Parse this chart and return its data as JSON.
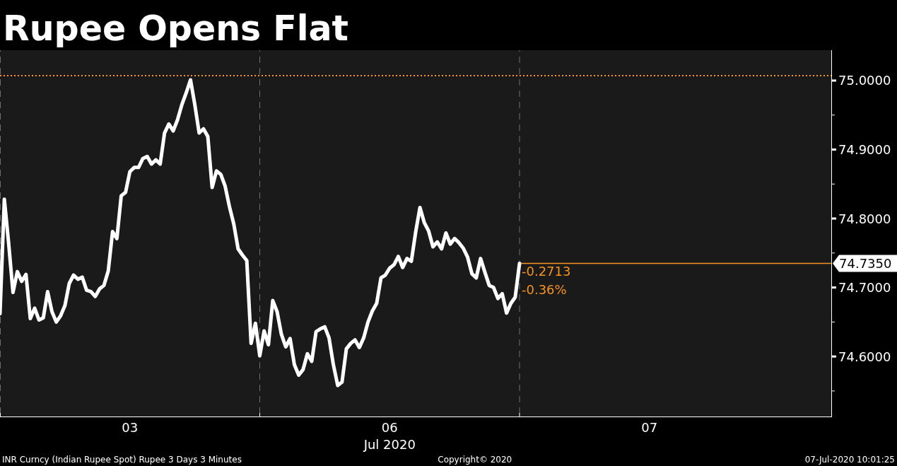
{
  "chart_data": {
    "type": "line",
    "title": "Rupee Opens Flat",
    "xlabel": "Jul 2020",
    "categories": [
      null,
      null,
      null,
      null,
      null,
      null,
      null,
      null,
      null,
      null,
      null,
      null,
      null,
      null,
      null,
      null,
      null,
      null,
      null,
      null,
      null,
      null,
      null,
      null,
      null,
      null,
      null,
      null,
      null,
      null,
      "03",
      null,
      null,
      null,
      null,
      null,
      null,
      null,
      null,
      null,
      null,
      null,
      null,
      null,
      null,
      null,
      null,
      null,
      null,
      null,
      null,
      null,
      null,
      null,
      null,
      null,
      null,
      null,
      null,
      null,
      null,
      null,
      null,
      null,
      null,
      null,
      null,
      null,
      null,
      null,
      null,
      null,
      null,
      null,
      null,
      null,
      null,
      null,
      null,
      null,
      null,
      null,
      null,
      null,
      null,
      null,
      null,
      null,
      null,
      null,
      "06",
      null,
      null,
      null,
      null,
      null,
      null,
      null,
      null,
      null,
      null,
      null,
      null,
      null,
      null,
      null,
      null,
      null,
      null,
      null,
      null,
      null,
      null,
      null,
      null,
      null,
      null,
      null,
      null,
      null,
      null,
      null,
      null,
      null,
      null,
      null,
      null,
      null,
      null,
      null,
      null,
      null,
      null,
      null,
      null,
      null,
      null,
      null,
      null,
      null,
      null,
      null,
      null,
      null,
      null,
      null,
      null,
      null,
      null,
      null,
      "07",
      null,
      null,
      null,
      null,
      null,
      null,
      null,
      null,
      null,
      null,
      null,
      null,
      null,
      null,
      null,
      null,
      null,
      null,
      null,
      null,
      null,
      null,
      null,
      null,
      null,
      null,
      null,
      null,
      null,
      null,
      null,
      null,
      null,
      null,
      null,
      null,
      null,
      null,
      null,
      null,
      null,
      null
    ],
    "series": [
      {
        "color": "#ffffff",
        "values": [
          74.662,
          74.828,
          74.764,
          74.693,
          74.723,
          74.709,
          74.719,
          74.655,
          74.67,
          74.653,
          74.656,
          74.694,
          74.665,
          74.65,
          74.659,
          74.674,
          74.706,
          74.718,
          74.712,
          74.715,
          74.696,
          74.694,
          74.687,
          74.698,
          74.703,
          74.724,
          74.781,
          74.771,
          74.833,
          74.838,
          74.868,
          74.874,
          74.874,
          74.887,
          74.89,
          74.879,
          74.885,
          74.879,
          74.924,
          74.937,
          74.927,
          74.943,
          74.965,
          74.982,
          75.001,
          74.965,
          74.924,
          74.93,
          74.919,
          74.845,
          74.869,
          74.864,
          74.847,
          74.817,
          74.792,
          74.756,
          74.747,
          74.739,
          74.619,
          74.648,
          74.601,
          74.637,
          74.617,
          74.681,
          74.665,
          74.632,
          74.614,
          74.626,
          74.588,
          74.573,
          74.581,
          74.604,
          74.593,
          74.636,
          74.64,
          74.643,
          74.627,
          74.588,
          74.558,
          74.563,
          74.611,
          74.619,
          74.624,
          74.613,
          74.627,
          74.65,
          74.666,
          74.677,
          74.714,
          74.718,
          74.728,
          74.733,
          74.745,
          74.729,
          74.742,
          74.738,
          74.78,
          74.816,
          74.794,
          74.782,
          74.759,
          74.766,
          74.756,
          74.779,
          74.763,
          74.771,
          74.765,
          74.757,
          74.744,
          74.72,
          74.714,
          74.742,
          74.722,
          74.703,
          74.7,
          74.684,
          74.691,
          74.663,
          74.677,
          74.686,
          74.735,
          null,
          null,
          null,
          null,
          null,
          null,
          null,
          null,
          null,
          null,
          null,
          null,
          null,
          null,
          null,
          null,
          null,
          null,
          null,
          null,
          null,
          null,
          null,
          null,
          null,
          null,
          null,
          null,
          null,
          null,
          null,
          null,
          null,
          null,
          null,
          null,
          null,
          null,
          null,
          null,
          null,
          null,
          null,
          null,
          null,
          null,
          null,
          null,
          null,
          null,
          null,
          null,
          null,
          null,
          null,
          null,
          null,
          null,
          null,
          null,
          null,
          null,
          null,
          null,
          null,
          null,
          null,
          null,
          null,
          null,
          null,
          null
        ]
      }
    ],
    "ylim": [
      74.513,
      75.044
    ],
    "yticks": [
      {
        "value": 74.55,
        "label": null
      },
      {
        "value": 74.6,
        "label": "74.6000"
      },
      {
        "value": 74.65,
        "label": null
      },
      {
        "value": 74.7,
        "label": "74.7000"
      },
      {
        "value": 74.75,
        "label": null
      },
      {
        "value": 74.8,
        "label": "74.8000"
      },
      {
        "value": 74.85,
        "label": null
      },
      {
        "value": 74.9,
        "label": "74.9000"
      },
      {
        "value": 74.95,
        "label": null
      },
      {
        "value": 75.0,
        "label": "75.0000"
      }
    ],
    "grid": "x",
    "ref_lines": [
      {
        "axis": "y",
        "value": 75.007,
        "color": "#f7931e",
        "line_style": "dotted"
      },
      {
        "axis": "y",
        "value": 74.735,
        "label": "74.7350",
        "color": "#f7931e",
        "line_style": "solid"
      }
    ],
    "annotations": [
      {
        "text": "-0.2713",
        "y": 74.735
      },
      {
        "text": "-0.36%",
        "y": 74.735
      },
      "INR Curncy (Indian Rupee Spot) Rupee 3 Days 3 Minutes",
      "Copyright© 2020",
      "07-Jul-2020 10:01:25"
    ]
  }
}
